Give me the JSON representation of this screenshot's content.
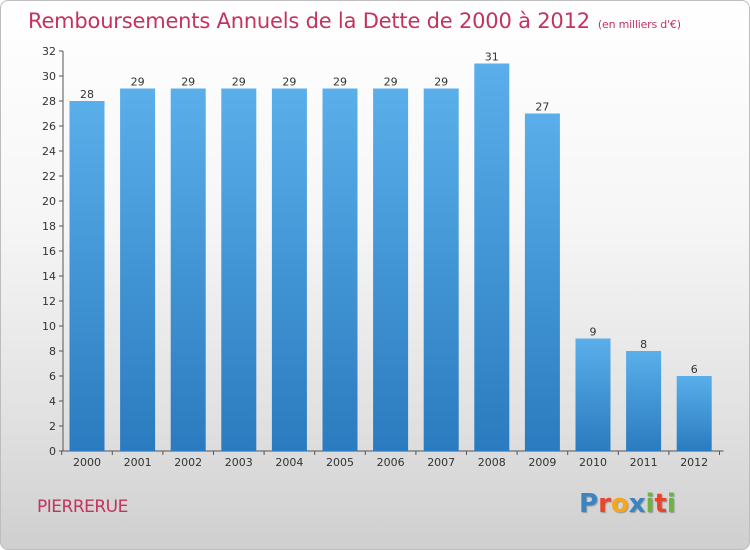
{
  "title": "Remboursements Annuels de la Dette de 2000 à 2012",
  "unit_label": "(en milliers d'€)",
  "commune": "PIERRERUE",
  "logo": {
    "text": "Proxiti",
    "letters": [
      {
        "ch": "P",
        "color": "#3b84c4"
      },
      {
        "ch": "r",
        "color": "#e8452c"
      },
      {
        "ch": "o",
        "color": "#f5a81c"
      },
      {
        "ch": "x",
        "color": "#3b84c4"
      },
      {
        "ch": "i",
        "color": "#6cb33f"
      },
      {
        "ch": "t",
        "color": "#e8452c"
      },
      {
        "ch": "i",
        "color": "#6cb33f"
      }
    ]
  },
  "colors": {
    "bar_top": "#5aafea",
    "bar_bottom": "#2a7bbf",
    "title": "#c4325e",
    "axis": "#555555"
  },
  "chart_data": {
    "type": "bar",
    "title": "Remboursements Annuels de la Dette de 2000 à 2012",
    "ylabel": "en milliers d'€",
    "xlabel": "",
    "categories": [
      "2000",
      "2001",
      "2002",
      "2003",
      "2004",
      "2005",
      "2006",
      "2007",
      "2008",
      "2009",
      "2010",
      "2011",
      "2012"
    ],
    "values": [
      28,
      29,
      29,
      29,
      29,
      29,
      29,
      29,
      31,
      27,
      9,
      8,
      6
    ],
    "ylim": [
      0,
      32
    ],
    "yticks": [
      0,
      2,
      4,
      6,
      8,
      10,
      12,
      14,
      16,
      18,
      20,
      22,
      24,
      26,
      28,
      30,
      32
    ],
    "grid": false
  }
}
